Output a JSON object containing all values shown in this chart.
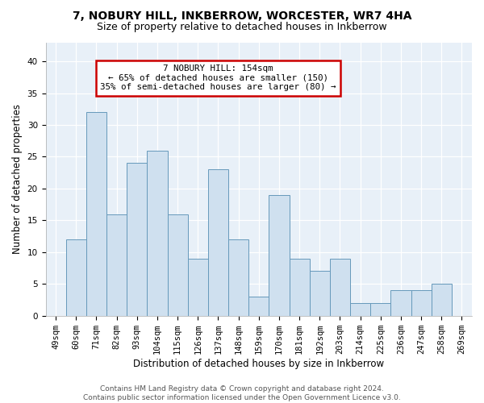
{
  "title": "7, NOBURY HILL, INKBERROW, WORCESTER, WR7 4HA",
  "subtitle": "Size of property relative to detached houses in Inkberrow",
  "xlabel": "Distribution of detached houses by size in Inkberrow",
  "ylabel": "Number of detached properties",
  "categories": [
    "49sqm",
    "60sqm",
    "71sqm",
    "82sqm",
    "93sqm",
    "104sqm",
    "115sqm",
    "126sqm",
    "137sqm",
    "148sqm",
    "159sqm",
    "170sqm",
    "181sqm",
    "192sqm",
    "203sqm",
    "214sqm",
    "225sqm",
    "236sqm",
    "247sqm",
    "258sqm",
    "269sqm"
  ],
  "values": [
    0,
    12,
    32,
    16,
    24,
    26,
    16,
    9,
    23,
    12,
    3,
    19,
    9,
    7,
    9,
    2,
    2,
    4,
    4,
    5,
    0
  ],
  "bar_color": "#cfe0ef",
  "bar_edge_color": "#6699bb",
  "annotation_text": "7 NOBURY HILL: 154sqm\n← 65% of detached houses are smaller (150)\n35% of semi-detached houses are larger (80) →",
  "annotation_box_color": "#ffffff",
  "annotation_box_edge_color": "#cc0000",
  "property_bin": 9,
  "background_color": "#e8f0f8",
  "footer_text": "Contains HM Land Registry data © Crown copyright and database right 2024.\nContains public sector information licensed under the Open Government Licence v3.0.",
  "ylim": [
    0,
    43
  ],
  "yticks": [
    0,
    5,
    10,
    15,
    20,
    25,
    30,
    35,
    40
  ],
  "title_fontsize": 10,
  "subtitle_fontsize": 9,
  "tick_fontsize": 7.5,
  "ylabel_fontsize": 8.5,
  "xlabel_fontsize": 8.5,
  "annotation_fontsize": 7.8,
  "footer_fontsize": 6.5
}
